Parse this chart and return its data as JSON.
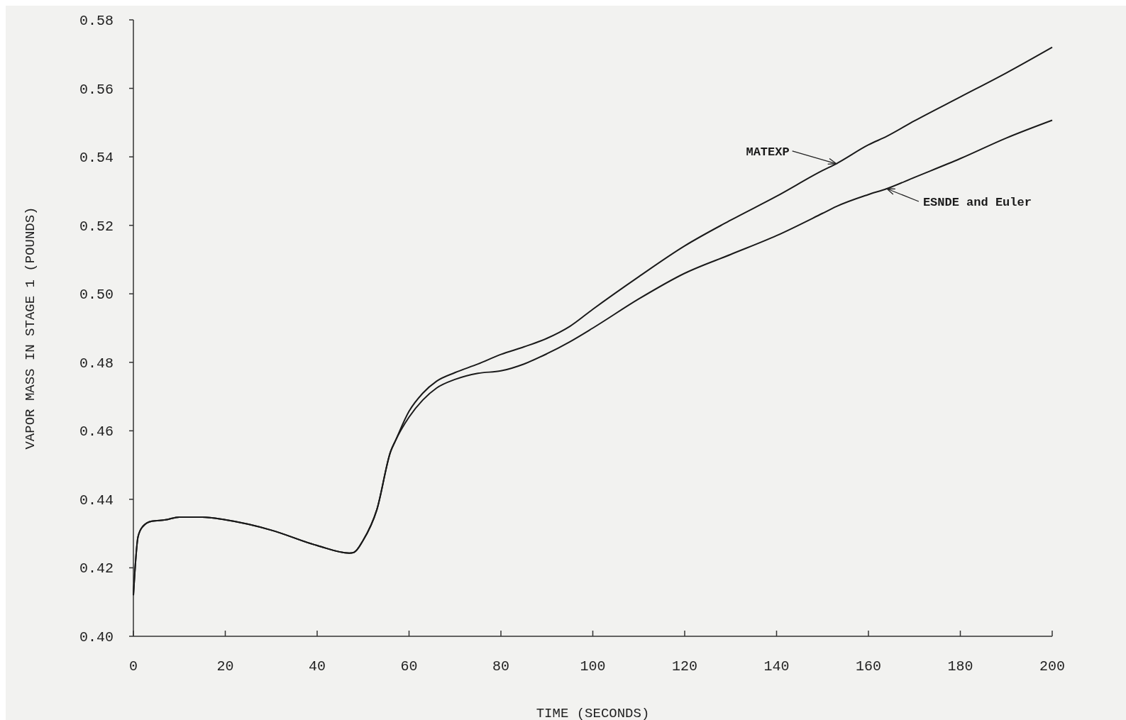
{
  "chart_data": {
    "type": "line",
    "xlabel": "TIME (SECONDS)",
    "ylabel": "VAPOR MASS IN STAGE 1 (POUNDS)",
    "x": [
      0,
      1,
      2,
      4,
      7,
      10,
      15,
      20,
      30,
      40,
      47,
      48,
      50,
      53,
      56,
      57,
      60,
      63,
      66,
      70,
      75,
      80,
      85,
      90,
      95,
      100,
      110,
      120,
      130,
      140,
      150,
      153,
      160,
      164,
      170,
      180,
      190,
      200
    ],
    "series": [
      {
        "name": "MATEXP",
        "color": "#1a1a1a",
        "values": [
          0.412,
          0.429,
          0.432,
          0.4336,
          0.434,
          0.4348,
          0.4348,
          0.434,
          0.431,
          0.4265,
          0.4243,
          0.4245,
          0.428,
          0.437,
          0.454,
          0.457,
          0.4657,
          0.471,
          0.4745,
          0.477,
          0.4795,
          0.4823,
          0.4845,
          0.487,
          0.4905,
          0.4955,
          0.505,
          0.514,
          0.5215,
          0.5285,
          0.536,
          0.538,
          0.5435,
          0.546,
          0.5505,
          0.5575,
          0.5645,
          0.572
        ]
      },
      {
        "name": "ESNDE and Euler",
        "color": "#1a1a1a",
        "values": [
          0.412,
          0.429,
          0.432,
          0.4336,
          0.434,
          0.4348,
          0.4348,
          0.434,
          0.431,
          0.4265,
          0.4243,
          0.4245,
          0.428,
          0.437,
          0.454,
          0.457,
          0.464,
          0.469,
          0.4725,
          0.475,
          0.4768,
          0.4775,
          0.4795,
          0.4825,
          0.486,
          0.49,
          0.4985,
          0.506,
          0.5115,
          0.517,
          0.5235,
          0.5255,
          0.529,
          0.5307,
          0.534,
          0.5395,
          0.5455,
          0.5507
        ]
      }
    ],
    "xlim": [
      0,
      200
    ],
    "xticks": [
      0,
      20,
      40,
      60,
      80,
      100,
      120,
      140,
      160,
      180,
      200
    ],
    "ylim": [
      0.4,
      0.58
    ],
    "yticks": [
      {
        "value": 0.4,
        "label": "0.40"
      },
      {
        "value": 0.42,
        "label": "0.42"
      },
      {
        "value": 0.44,
        "label": "0.44"
      },
      {
        "value": 0.46,
        "label": "0.46"
      },
      {
        "value": 0.48,
        "label": "0.48"
      },
      {
        "value": 0.5,
        "label": "0.50"
      },
      {
        "value": 0.52,
        "label": "0.52"
      },
      {
        "value": 0.54,
        "label": "0.54"
      },
      {
        "value": 0.56,
        "label": "0.56"
      },
      {
        "value": 0.58,
        "label": "0.58"
      }
    ],
    "grid": false,
    "marker": "none",
    "line_style": "solid"
  }
}
